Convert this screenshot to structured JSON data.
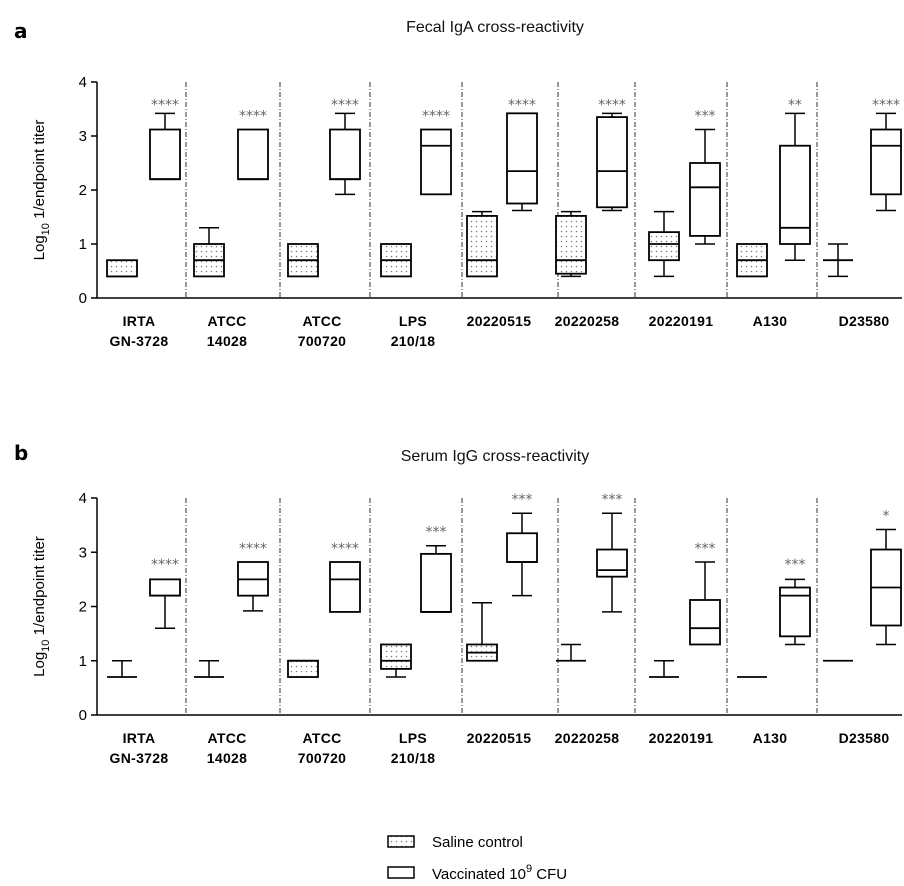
{
  "chart_data": [
    {
      "type": "box",
      "panel_label": "a",
      "title": "Fecal IgA cross-reactivity",
      "ylabel_prefix": "Log",
      "ylabel_sub": "10",
      "ylabel_rest": " 1/endpoint titer",
      "ylim": [
        0,
        4
      ],
      "yticks": [
        "0",
        "1",
        "2",
        "3",
        "4"
      ],
      "categories": [
        [
          "IRTA",
          "GN-3728"
        ],
        [
          "ATCC",
          "14028"
        ],
        [
          "ATCC",
          "700720"
        ],
        [
          "LPS",
          "210/18"
        ],
        [
          "20220515"
        ],
        [
          "20220258"
        ],
        [
          "20220191"
        ],
        [
          "A130"
        ],
        [
          "D23580"
        ]
      ],
      "series": [
        {
          "name": "Saline control",
          "boxes": [
            {
              "min": 0.4,
              "q1": 0.4,
              "median": 0.4,
              "q3": 0.7,
              "max": 0.7
            },
            {
              "min": 0.4,
              "q1": 0.4,
              "median": 0.7,
              "q3": 1.0,
              "max": 1.3
            },
            {
              "min": 0.4,
              "q1": 0.4,
              "median": 0.7,
              "q3": 1.0,
              "max": 1.0
            },
            {
              "min": 0.4,
              "q1": 0.4,
              "median": 0.7,
              "q3": 1.0,
              "max": 1.0
            },
            {
              "min": 0.4,
              "q1": 0.4,
              "median": 0.7,
              "q3": 1.52,
              "max": 1.6
            },
            {
              "min": 0.4,
              "q1": 0.45,
              "median": 0.7,
              "q3": 1.52,
              "max": 1.6
            },
            {
              "min": 0.4,
              "q1": 0.7,
              "median": 1.0,
              "q3": 1.22,
              "max": 1.6
            },
            {
              "min": 0.4,
              "q1": 0.4,
              "median": 0.7,
              "q3": 1.0,
              "max": 1.0
            },
            {
              "min": 0.4,
              "q1": 0.7,
              "median": 0.7,
              "q3": 0.7,
              "max": 1.0
            }
          ]
        },
        {
          "name": "Vaccinated 10^9 CFU",
          "boxes": [
            {
              "min": 2.2,
              "q1": 2.2,
              "median": 2.2,
              "q3": 3.12,
              "max": 3.42
            },
            {
              "min": 2.2,
              "q1": 2.2,
              "median": 2.2,
              "q3": 3.12,
              "max": 3.12
            },
            {
              "min": 1.92,
              "q1": 2.2,
              "median": 2.2,
              "q3": 3.12,
              "max": 3.42
            },
            {
              "min": 1.92,
              "q1": 1.92,
              "median": 2.82,
              "q3": 3.12,
              "max": 3.12
            },
            {
              "min": 1.62,
              "q1": 1.75,
              "median": 2.35,
              "q3": 3.42,
              "max": 3.42
            },
            {
              "min": 1.62,
              "q1": 1.68,
              "median": 2.35,
              "q3": 3.35,
              "max": 3.42
            },
            {
              "min": 1.0,
              "q1": 1.15,
              "median": 2.05,
              "q3": 2.5,
              "max": 3.12
            },
            {
              "min": 0.7,
              "q1": 1.0,
              "median": 1.3,
              "q3": 2.82,
              "max": 3.42
            },
            {
              "min": 1.62,
              "q1": 1.92,
              "median": 2.82,
              "q3": 3.12,
              "max": 3.42
            }
          ]
        }
      ],
      "significance": [
        "****",
        "****",
        "****",
        "****",
        "****",
        "****",
        "***",
        "**",
        "****"
      ],
      "significance_y": [
        3.6,
        3.4,
        3.6,
        3.4,
        3.6,
        3.6,
        3.4,
        3.6,
        3.6
      ]
    },
    {
      "type": "box",
      "panel_label": "b",
      "title": "Serum IgG cross-reactivity",
      "ylabel_prefix": "Log",
      "ylabel_sub": "10",
      "ylabel_rest": " 1/endpoint titer",
      "ylim": [
        0,
        4
      ],
      "yticks": [
        "0",
        "1",
        "2",
        "3",
        "4"
      ],
      "categories": [
        [
          "IRTA",
          "GN-3728"
        ],
        [
          "ATCC",
          "14028"
        ],
        [
          "ATCC",
          "700720"
        ],
        [
          "LPS",
          "210/18"
        ],
        [
          "20220515"
        ],
        [
          "20220258"
        ],
        [
          "20220191"
        ],
        [
          "A130"
        ],
        [
          "D23580"
        ]
      ],
      "series": [
        {
          "name": "Saline control",
          "boxes": [
            {
              "min": 0.7,
              "q1": 0.7,
              "median": 0.7,
              "q3": 0.7,
              "max": 1.0
            },
            {
              "min": 0.7,
              "q1": 0.7,
              "median": 0.7,
              "q3": 0.7,
              "max": 1.0
            },
            {
              "min": 0.7,
              "q1": 0.7,
              "median": 1.0,
              "q3": 1.0,
              "max": 1.0
            },
            {
              "min": 0.7,
              "q1": 0.85,
              "median": 1.0,
              "q3": 1.3,
              "max": 1.3
            },
            {
              "min": 1.0,
              "q1": 1.0,
              "median": 1.15,
              "q3": 1.3,
              "max": 2.07
            },
            {
              "min": 1.0,
              "q1": 1.0,
              "median": 1.0,
              "q3": 1.0,
              "max": 1.3
            },
            {
              "min": 0.7,
              "q1": 0.7,
              "median": 0.7,
              "q3": 0.7,
              "max": 1.0
            },
            {
              "min": 0.7,
              "q1": 0.7,
              "median": 0.7,
              "q3": 0.7,
              "max": 0.7
            },
            {
              "min": 1.0,
              "q1": 1.0,
              "median": 1.0,
              "q3": 1.0,
              "max": 1.0
            }
          ]
        },
        {
          "name": "Vaccinated 10^9 CFU",
          "boxes": [
            {
              "min": 1.6,
              "q1": 2.2,
              "median": 2.2,
              "q3": 2.5,
              "max": 2.5
            },
            {
              "min": 1.92,
              "q1": 2.2,
              "median": 2.5,
              "q3": 2.82,
              "max": 2.82
            },
            {
              "min": 1.9,
              "q1": 1.9,
              "median": 2.5,
              "q3": 2.82,
              "max": 2.82
            },
            {
              "min": 1.9,
              "q1": 1.9,
              "median": 1.9,
              "q3": 2.97,
              "max": 3.12
            },
            {
              "min": 2.2,
              "q1": 2.82,
              "median": 2.82,
              "q3": 3.35,
              "max": 3.72
            },
            {
              "min": 1.9,
              "q1": 2.55,
              "median": 2.67,
              "q3": 3.05,
              "max": 3.72
            },
            {
              "min": 1.3,
              "q1": 1.3,
              "median": 1.6,
              "q3": 2.12,
              "max": 2.82
            },
            {
              "min": 1.3,
              "q1": 1.45,
              "median": 2.2,
              "q3": 2.35,
              "max": 2.5
            },
            {
              "min": 1.3,
              "q1": 1.65,
              "median": 2.35,
              "q3": 3.05,
              "max": 3.42
            }
          ]
        }
      ],
      "significance": [
        "****",
        "****",
        "****",
        "***",
        "***",
        "***",
        "***",
        "***",
        "*"
      ],
      "significance_y": [
        2.8,
        3.1,
        3.1,
        3.4,
        4.0,
        4.0,
        3.1,
        2.8,
        3.7
      ]
    }
  ],
  "legend": {
    "items": [
      {
        "label": "Saline control",
        "pattern": "dotted"
      },
      {
        "label_prefix": "Vaccinated 10",
        "label_sup": "9",
        "label_suffix": " CFU",
        "pattern": "open"
      }
    ]
  }
}
